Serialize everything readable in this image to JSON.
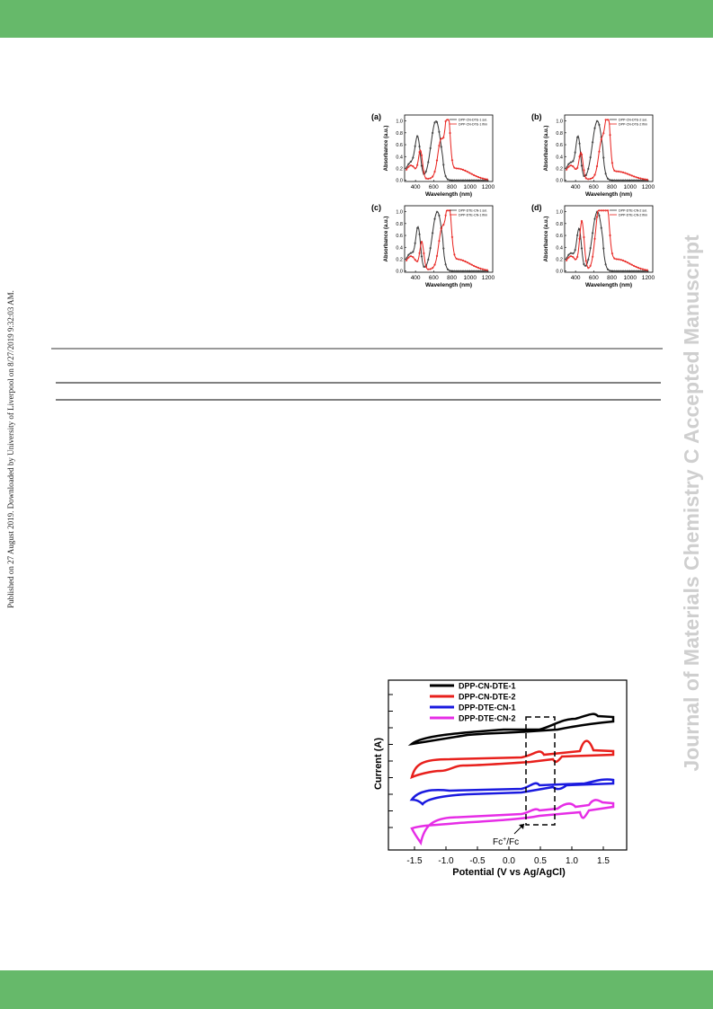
{
  "sidebar": {
    "left": "Published on 27 August 2019. Downloaded by University of Liverpool on 8/27/2019 9:32:03 AM.",
    "right": "Journal of Materials Chemistry C Accepted Manuscript"
  },
  "absorbance_figure": {
    "y_label": "Absorbance (a.u.)",
    "x_label": "Wavelength (nm)",
    "yticks": [
      "0.0",
      "0.2",
      "0.4",
      "0.6",
      "0.8",
      "1.0"
    ],
    "xticks": [
      "400",
      "600",
      "800",
      "1000",
      "1200"
    ],
    "panels": [
      {
        "label": "(a)",
        "legend": [
          "DPP-CN-DTE-1 sol.",
          "DPP-CN-DTE-1 film"
        ]
      },
      {
        "label": "(b)",
        "legend": [
          "DPP-CN-DTE-2 sol.",
          "DPP-CN-DTE-2 film"
        ]
      },
      {
        "label": "(c)",
        "legend": [
          "DPP-DTE-CN-1 sol.",
          "DPP-DTE-CN-1 film"
        ]
      },
      {
        "label": "(d)",
        "legend": [
          "DPP-DTE-CN-2 sol.",
          "DPP-DTE-CN-2 film"
        ]
      }
    ]
  },
  "cv_figure": {
    "legend": [
      {
        "name": "DPP-CN-DTE-1",
        "color": "#000000"
      },
      {
        "name": "DPP-CN-DTE-2",
        "color": "#e8201c"
      },
      {
        "name": "DPP-DTE-CN-1",
        "color": "#1a1adf"
      },
      {
        "name": "DPP-DTE-CN-2",
        "color": "#e62de6"
      }
    ],
    "y_label": "Current (A)",
    "x_label": "Potential (V vs Ag/AgCl)",
    "xticks": [
      "-1.5",
      "-1.0",
      "-0.5",
      "0.0",
      "0.5",
      "1.0",
      "1.5"
    ],
    "annotation": {
      "base": "Fc",
      "sup": "+",
      "rest": "/Fc"
    }
  }
}
